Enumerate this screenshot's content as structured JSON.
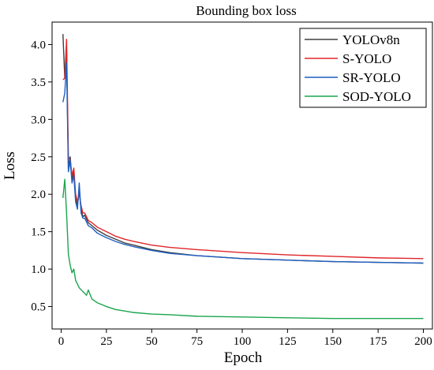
{
  "chart_data": {
    "type": "line",
    "title": "Bounding box loss",
    "xlabel": "Epoch",
    "ylabel": "Loss",
    "xlim": [
      -5,
      205
    ],
    "ylim": [
      0.2,
      4.3
    ],
    "xticks": [
      0,
      25,
      50,
      75,
      100,
      125,
      150,
      175,
      200
    ],
    "yticks": [
      0.5,
      1.0,
      1.5,
      2.0,
      2.5,
      3.0,
      3.5,
      4.0
    ],
    "xtick_labels": [
      "0",
      "25",
      "50",
      "75",
      "100",
      "125",
      "150",
      "175",
      "200"
    ],
    "ytick_labels": [
      "0.5",
      "1.0",
      "1.5",
      "2.0",
      "2.5",
      "3.0",
      "3.5",
      "4.0"
    ],
    "grid": false,
    "legend_position": "top-right",
    "series": [
      {
        "name": "YOLOv8n",
        "color": "#404040",
        "points": [
          [
            1,
            4.14
          ],
          [
            2,
            3.55
          ],
          [
            3,
            3.9
          ],
          [
            4,
            2.35
          ],
          [
            5,
            2.5
          ],
          [
            6,
            2.2
          ],
          [
            7,
            2.3
          ],
          [
            8,
            1.95
          ],
          [
            9,
            1.85
          ],
          [
            10,
            2.05
          ],
          [
            11,
            1.8
          ],
          [
            12,
            1.7
          ],
          [
            13,
            1.72
          ],
          [
            15,
            1.62
          ],
          [
            17,
            1.58
          ],
          [
            20,
            1.52
          ],
          [
            25,
            1.45
          ],
          [
            30,
            1.4
          ],
          [
            35,
            1.35
          ],
          [
            40,
            1.32
          ],
          [
            50,
            1.26
          ],
          [
            60,
            1.22
          ],
          [
            75,
            1.18
          ],
          [
            100,
            1.14
          ],
          [
            125,
            1.12
          ],
          [
            150,
            1.1
          ],
          [
            175,
            1.09
          ],
          [
            200,
            1.08
          ]
        ]
      },
      {
        "name": "S-YOLO",
        "color": "#e0262a",
        "points": [
          [
            1,
            3.53
          ],
          [
            2,
            3.55
          ],
          [
            3,
            4.07
          ],
          [
            4,
            2.5
          ],
          [
            5,
            2.45
          ],
          [
            6,
            2.25
          ],
          [
            7,
            2.35
          ],
          [
            8,
            2.0
          ],
          [
            9,
            1.9
          ],
          [
            10,
            2.0
          ],
          [
            11,
            1.85
          ],
          [
            12,
            1.75
          ],
          [
            13,
            1.75
          ],
          [
            15,
            1.65
          ],
          [
            17,
            1.62
          ],
          [
            20,
            1.56
          ],
          [
            25,
            1.5
          ],
          [
            30,
            1.44
          ],
          [
            35,
            1.4
          ],
          [
            40,
            1.37
          ],
          [
            50,
            1.32
          ],
          [
            60,
            1.29
          ],
          [
            75,
            1.26
          ],
          [
            100,
            1.22
          ],
          [
            125,
            1.19
          ],
          [
            150,
            1.17
          ],
          [
            175,
            1.15
          ],
          [
            200,
            1.14
          ]
        ]
      },
      {
        "name": "SR-YOLO",
        "color": "#1f5fc0",
        "points": [
          [
            1,
            3.23
          ],
          [
            2,
            3.35
          ],
          [
            3,
            3.75
          ],
          [
            4,
            2.3
          ],
          [
            5,
            2.45
          ],
          [
            6,
            2.15
          ],
          [
            7,
            2.25
          ],
          [
            8,
            1.9
          ],
          [
            9,
            1.8
          ],
          [
            10,
            2.15
          ],
          [
            11,
            1.75
          ],
          [
            12,
            1.68
          ],
          [
            13,
            1.68
          ],
          [
            15,
            1.58
          ],
          [
            17,
            1.55
          ],
          [
            20,
            1.48
          ],
          [
            25,
            1.42
          ],
          [
            30,
            1.37
          ],
          [
            35,
            1.33
          ],
          [
            40,
            1.3
          ],
          [
            50,
            1.25
          ],
          [
            60,
            1.21
          ],
          [
            75,
            1.18
          ],
          [
            100,
            1.14
          ],
          [
            125,
            1.12
          ],
          [
            150,
            1.1
          ],
          [
            175,
            1.09
          ],
          [
            200,
            1.08
          ]
        ]
      },
      {
        "name": "SOD-YOLO",
        "color": "#1aa54e",
        "points": [
          [
            1,
            1.95
          ],
          [
            2,
            2.2
          ],
          [
            3,
            1.75
          ],
          [
            4,
            1.2
          ],
          [
            5,
            1.05
          ],
          [
            6,
            0.95
          ],
          [
            7,
            1.0
          ],
          [
            8,
            0.85
          ],
          [
            9,
            0.8
          ],
          [
            10,
            0.75
          ],
          [
            12,
            0.7
          ],
          [
            14,
            0.65
          ],
          [
            15,
            0.72
          ],
          [
            17,
            0.6
          ],
          [
            20,
            0.55
          ],
          [
            25,
            0.5
          ],
          [
            30,
            0.46
          ],
          [
            35,
            0.44
          ],
          [
            40,
            0.42
          ],
          [
            50,
            0.4
          ],
          [
            60,
            0.39
          ],
          [
            75,
            0.37
          ],
          [
            100,
            0.36
          ],
          [
            125,
            0.35
          ],
          [
            150,
            0.34
          ],
          [
            175,
            0.34
          ],
          [
            200,
            0.34
          ]
        ]
      }
    ]
  }
}
